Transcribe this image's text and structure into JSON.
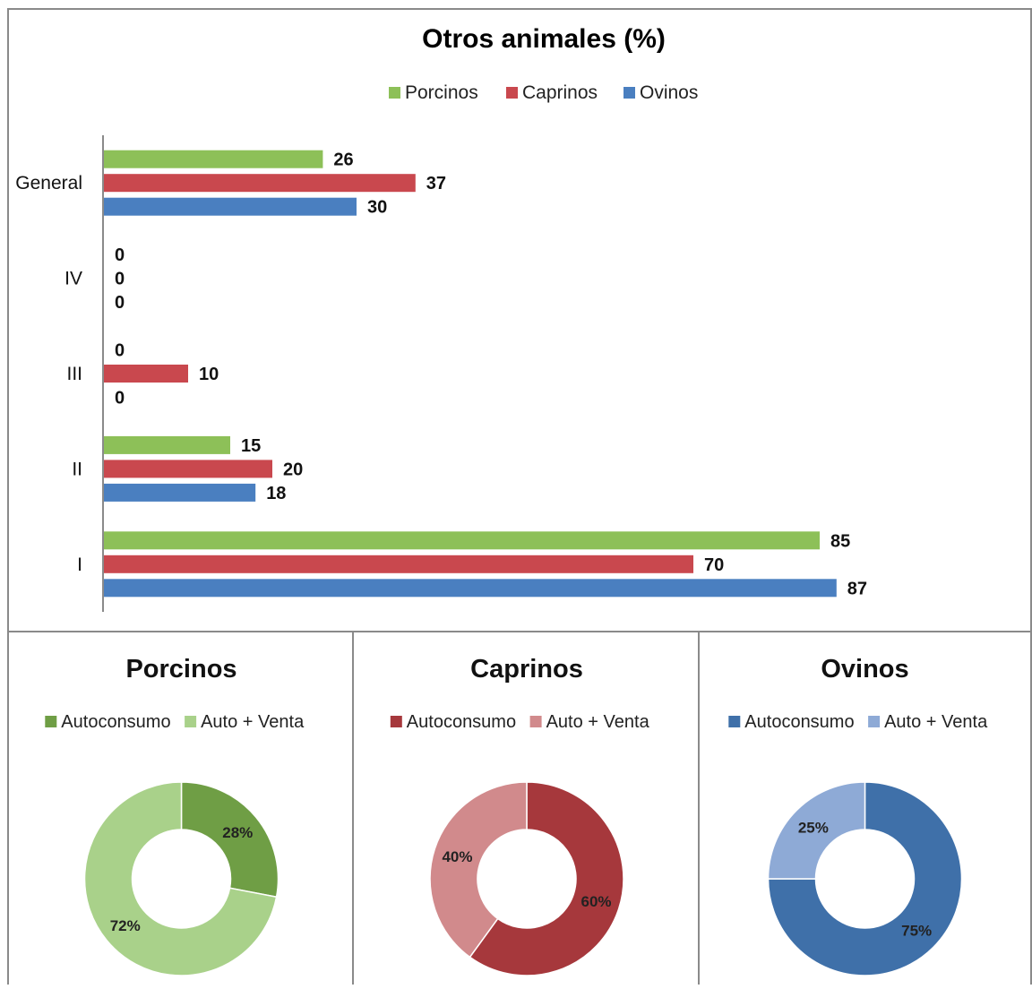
{
  "colors": {
    "porcinos": "#8dc058",
    "caprinos": "#c9484e",
    "ovinos": "#4a7fc0",
    "porcinos_auto": "#6f9e45",
    "porcinos_venta": "#a9d18a",
    "caprinos_auto": "#a6383c",
    "caprinos_venta": "#d18a8c",
    "ovinos_auto": "#3f70a9",
    "ovinos_venta": "#8eaad6"
  },
  "chart_data": [
    {
      "type": "bar",
      "orientation": "horizontal",
      "title": "Otros animales (%)",
      "categories": [
        "General",
        "IV",
        "III",
        "II",
        "I"
      ],
      "series": [
        {
          "name": "Porcinos",
          "color_key": "porcinos",
          "values": [
            26,
            0,
            0,
            15,
            85
          ]
        },
        {
          "name": "Caprinos",
          "color_key": "caprinos",
          "values": [
            37,
            0,
            10,
            20,
            70
          ]
        },
        {
          "name": "Ovinos",
          "color_key": "ovinos",
          "values": [
            30,
            0,
            0,
            18,
            87
          ]
        }
      ],
      "xlim": [
        0,
        100
      ],
      "legend": "top-center",
      "grid": false
    },
    {
      "type": "pie",
      "donut": true,
      "title": "Porcinos",
      "labels": [
        "Autoconsumo",
        "Auto + Venta"
      ],
      "values": [
        28,
        72
      ],
      "value_labels": [
        "28%",
        "72%"
      ],
      "color_keys": [
        "porcinos_auto",
        "porcinos_venta"
      ],
      "legend": "top-center"
    },
    {
      "type": "pie",
      "donut": true,
      "title": "Caprinos",
      "labels": [
        "Autoconsumo",
        "Auto + Venta"
      ],
      "values": [
        60,
        40
      ],
      "value_labels": [
        "60%",
        "40%"
      ],
      "color_keys": [
        "caprinos_auto",
        "caprinos_venta"
      ],
      "legend": "top-center"
    },
    {
      "type": "pie",
      "donut": true,
      "title": "Ovinos",
      "labels": [
        "Autoconsumo",
        "Auto + Venta"
      ],
      "values": [
        75,
        25
      ],
      "value_labels": [
        "75%",
        "25%"
      ],
      "color_keys": [
        "ovinos_auto",
        "ovinos_venta"
      ],
      "legend": "top-center"
    }
  ]
}
